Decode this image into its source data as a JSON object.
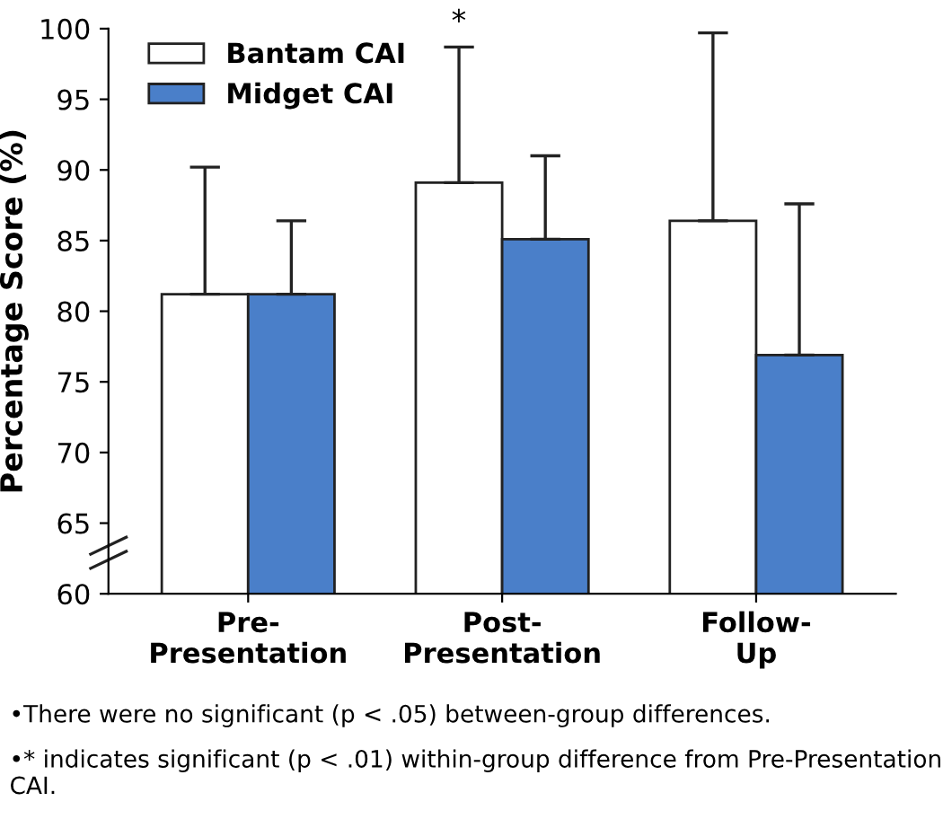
{
  "chart_data": {
    "type": "bar",
    "ylabel": "Percentage Score (%)",
    "categories": [
      "Pre-\nPresentation",
      "Post-\nPresentation",
      "Follow-\nUp"
    ],
    "series": [
      {
        "name": "Bantam CAI",
        "color": "#ffffff",
        "values": [
          81.2,
          89.1,
          86.4
        ],
        "errors": [
          [
            81.2,
            90.2
          ],
          [
            89.1,
            98.7
          ],
          [
            86.4,
            99.7
          ]
        ]
      },
      {
        "name": "Midget CAI",
        "color": "#4a7fc9",
        "values": [
          81.2,
          85.1,
          76.9
        ],
        "errors": [
          [
            81.2,
            86.4
          ],
          [
            85.1,
            91.0
          ],
          [
            76.9,
            87.6
          ]
        ]
      }
    ],
    "ylim": [
      60,
      100
    ],
    "yticks": [
      60,
      65,
      70,
      75,
      80,
      85,
      90,
      95,
      100
    ],
    "grid": false,
    "legend": "top left",
    "annotations": [
      "*",
      "•There were no significant (p < .05) between-group differences.",
      "•* indicates significant (p < .01) within-group difference from Pre-Presentation CAI."
    ]
  }
}
